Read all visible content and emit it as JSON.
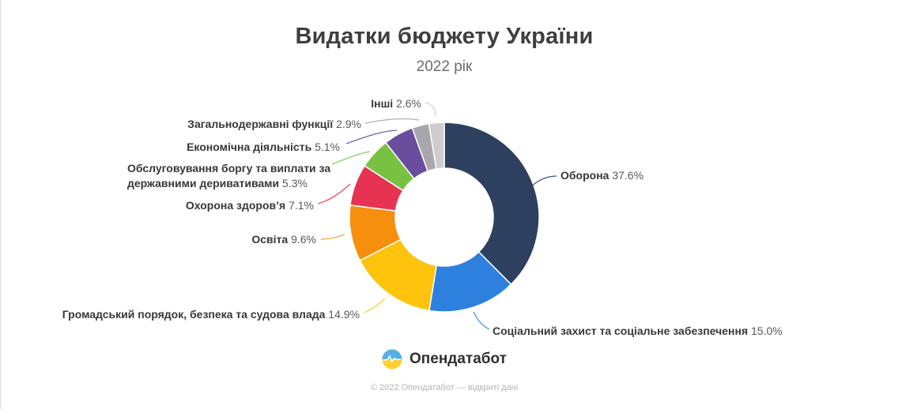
{
  "page": {
    "title": "Видатки бюджету України",
    "subtitle": "2022 рік"
  },
  "chart_data": {
    "type": "pie",
    "variant": "donut",
    "title": "Видатки бюджету України",
    "subtitle": "2022 рік",
    "unit": "%",
    "start_angle_deg": 0,
    "direction": "clockwise",
    "slices": [
      {
        "label": "Оборона",
        "value": 37.6,
        "pct_label": "37.6%",
        "color": "#2d4060"
      },
      {
        "label": "Соціальний захист та соціальне забезпечення",
        "value": 15.0,
        "pct_label": "15.0%",
        "color": "#2e80de"
      },
      {
        "label": "Громадський порядок, безпека та судова влада",
        "value": 14.9,
        "pct_label": "14.9%",
        "color": "#fdc30d"
      },
      {
        "label": "Освіта",
        "value": 9.6,
        "pct_label": "9.6%",
        "color": "#f78f0e"
      },
      {
        "label": "Охорона здоров’я",
        "value": 7.1,
        "pct_label": "7.1%",
        "color": "#e73352"
      },
      {
        "label": "Обслуговування боргу та виплати за державними деривативами",
        "value": 5.3,
        "pct_label": "5.3%",
        "color": "#79c142"
      },
      {
        "label": "Економічна діяльність",
        "value": 5.1,
        "pct_label": "5.1%",
        "color": "#6a4d9d"
      },
      {
        "label": "Загальнодержавні функції",
        "value": 2.9,
        "pct_label": "2.9%",
        "color": "#a8a8ac"
      },
      {
        "label": "Інші",
        "value": 2.6,
        "pct_label": "2.6%",
        "color": "#cdcdd1"
      }
    ]
  },
  "footer": {
    "logo_text": "Опендатабот",
    "copyright": "© 2022 Опендатабот — відкриті дані"
  }
}
